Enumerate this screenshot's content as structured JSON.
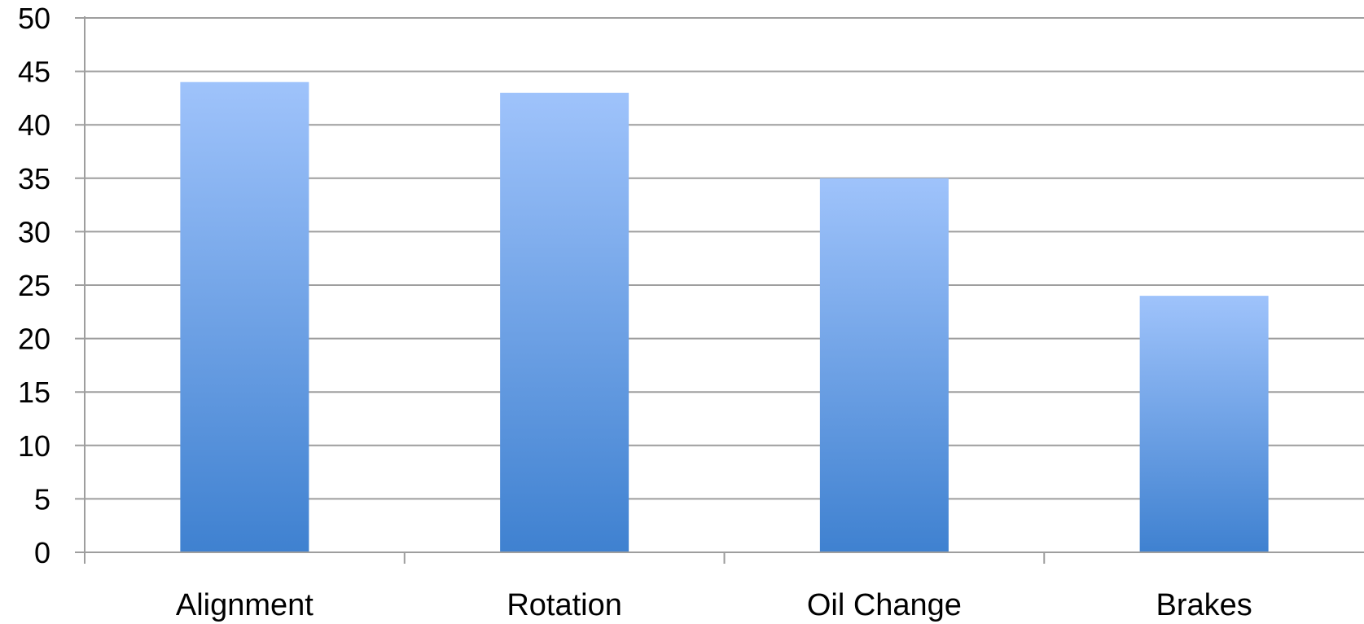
{
  "chart_data": {
    "type": "bar",
    "title": "",
    "xlabel": "",
    "ylabel": "",
    "categories": [
      "Alignment",
      "Rotation",
      "Oil Change",
      "Brakes"
    ],
    "values": [
      44,
      43,
      35,
      24
    ],
    "ylim": [
      0,
      50
    ],
    "yticks": [
      0,
      5,
      10,
      15,
      20,
      25,
      30,
      35,
      40,
      45,
      50
    ],
    "grid": true,
    "legend": "none",
    "colors": {
      "bar_top": "#9fc3fb",
      "bar_bottom": "#3f81d0",
      "grid": "#9e9e9e",
      "axis": "#9e9e9e"
    }
  }
}
